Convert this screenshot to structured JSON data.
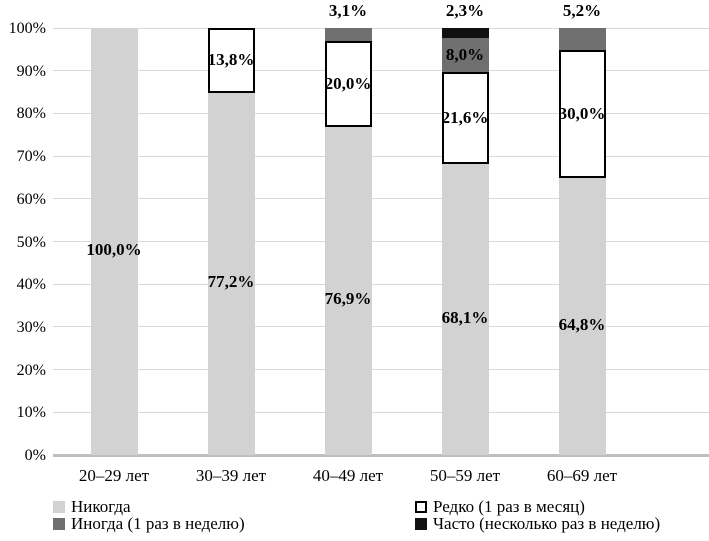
{
  "chart_data": {
    "type": "bar",
    "subtype": "stacked-100-percent-column",
    "title": "",
    "xlabel": "",
    "ylabel": "",
    "categories": [
      "20–29 лет",
      "30–39 лет",
      "40–49 лет",
      "50–59 лет",
      "60–69 лет"
    ],
    "series": [
      {
        "name": "Никогда",
        "color": "#d2d2d2",
        "values": [
          100.0,
          77.2,
          76.9,
          68.1,
          64.8
        ],
        "value_labels": [
          "100,0%",
          "77,2%",
          "76,9%",
          "68,1%",
          "64,8%"
        ]
      },
      {
        "name": "Редко (1 раз в месяц)",
        "color": "#ffffff",
        "border_color": "#000000",
        "values": [
          0,
          13.8,
          20.0,
          21.6,
          30.0
        ],
        "value_labels": [
          "",
          "13,8%",
          "20,0%",
          "21,6%",
          "30,0%"
        ]
      },
      {
        "name": "Иногда (1 раз в неделю)",
        "color": "#6f6f6f",
        "values": [
          0,
          0,
          3.1,
          8.0,
          5.2
        ],
        "value_labels": [
          "",
          "",
          "3,1%",
          "8,0%",
          "5,2%"
        ]
      },
      {
        "name": "Часто (несколько раз в неделю)",
        "color": "#111111",
        "values": [
          0,
          0,
          0,
          2.3,
          0
        ],
        "value_labels": [
          "",
          "",
          "",
          "2,3%",
          ""
        ]
      }
    ],
    "yticks": [
      "0%",
      "10%",
      "20%",
      "30%",
      "40%",
      "50%",
      "60%",
      "70%",
      "80%",
      "90%",
      "100%"
    ],
    "ylim": [
      0,
      100
    ],
    "grid": true,
    "legend": {
      "position": "bottom",
      "columns": [
        [
          0,
          2
        ],
        [
          1,
          3
        ]
      ]
    },
    "colors": {
      "gridline": "#d9d9d9",
      "axis_line": "#bfbfbf",
      "text": "#000000",
      "background": "#ffffff"
    }
  }
}
